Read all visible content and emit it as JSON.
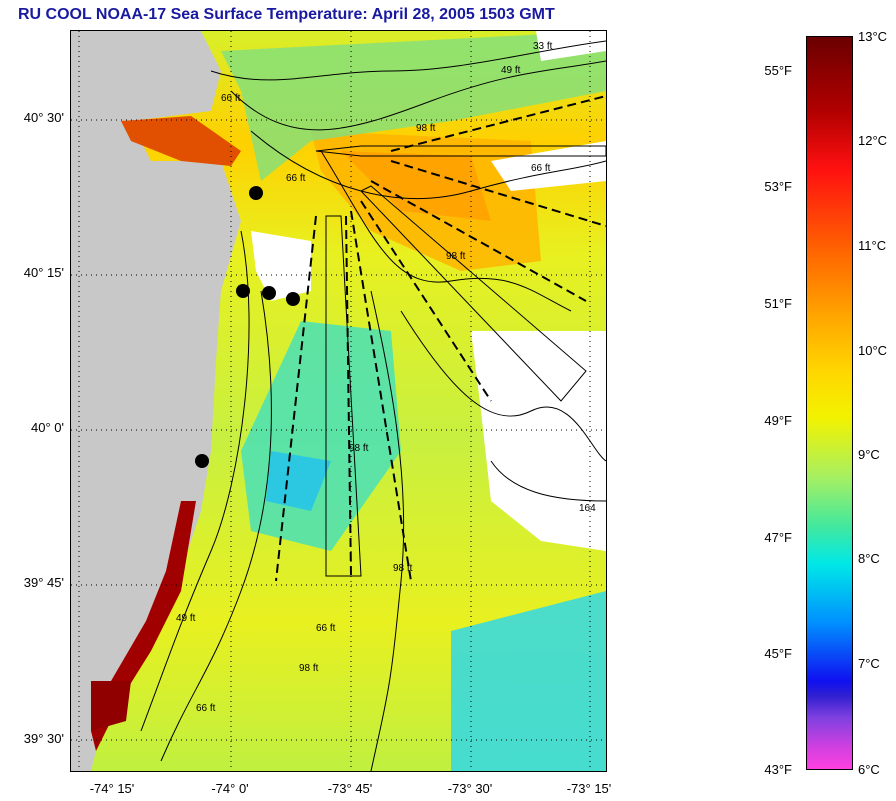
{
  "title": "RU COOL  NOAA-17  Sea Surface Temperature:  April 28, 2005 1503 GMT",
  "map": {
    "lat_labels": [
      "40° 30'",
      "40° 15'",
      "40° 0'",
      "39° 45'",
      "39° 30'"
    ],
    "lon_labels": [
      "-74° 15'",
      "-74° 0'",
      "-73° 45'",
      "-73° 30'",
      "-73° 15'"
    ],
    "contour_labels": [
      "33 ft",
      "49 ft",
      "66 ft",
      "66 ft",
      "98 ft",
      "66 ft",
      "98 ft",
      "98 ft",
      "66 ft",
      "98 ft",
      "66 ft",
      "49 ft",
      "164",
      "98 ft"
    ]
  },
  "colorbar": {
    "fahrenheit": [
      "55°F",
      "53°F",
      "51°F",
      "49°F",
      "47°F",
      "45°F",
      "43°F"
    ],
    "celsius": [
      "13°C",
      "12°C",
      "11°C",
      "10°C",
      "9°C",
      "8°C",
      "7°C",
      "6°C"
    ]
  },
  "colors": {
    "title": "#1a1aa0",
    "land": "#c8c8c8",
    "warm_coastal": "#a00000",
    "mid_water": "#f2f200",
    "cool_water": "#40e8e0",
    "no_data": "#ffffff"
  }
}
